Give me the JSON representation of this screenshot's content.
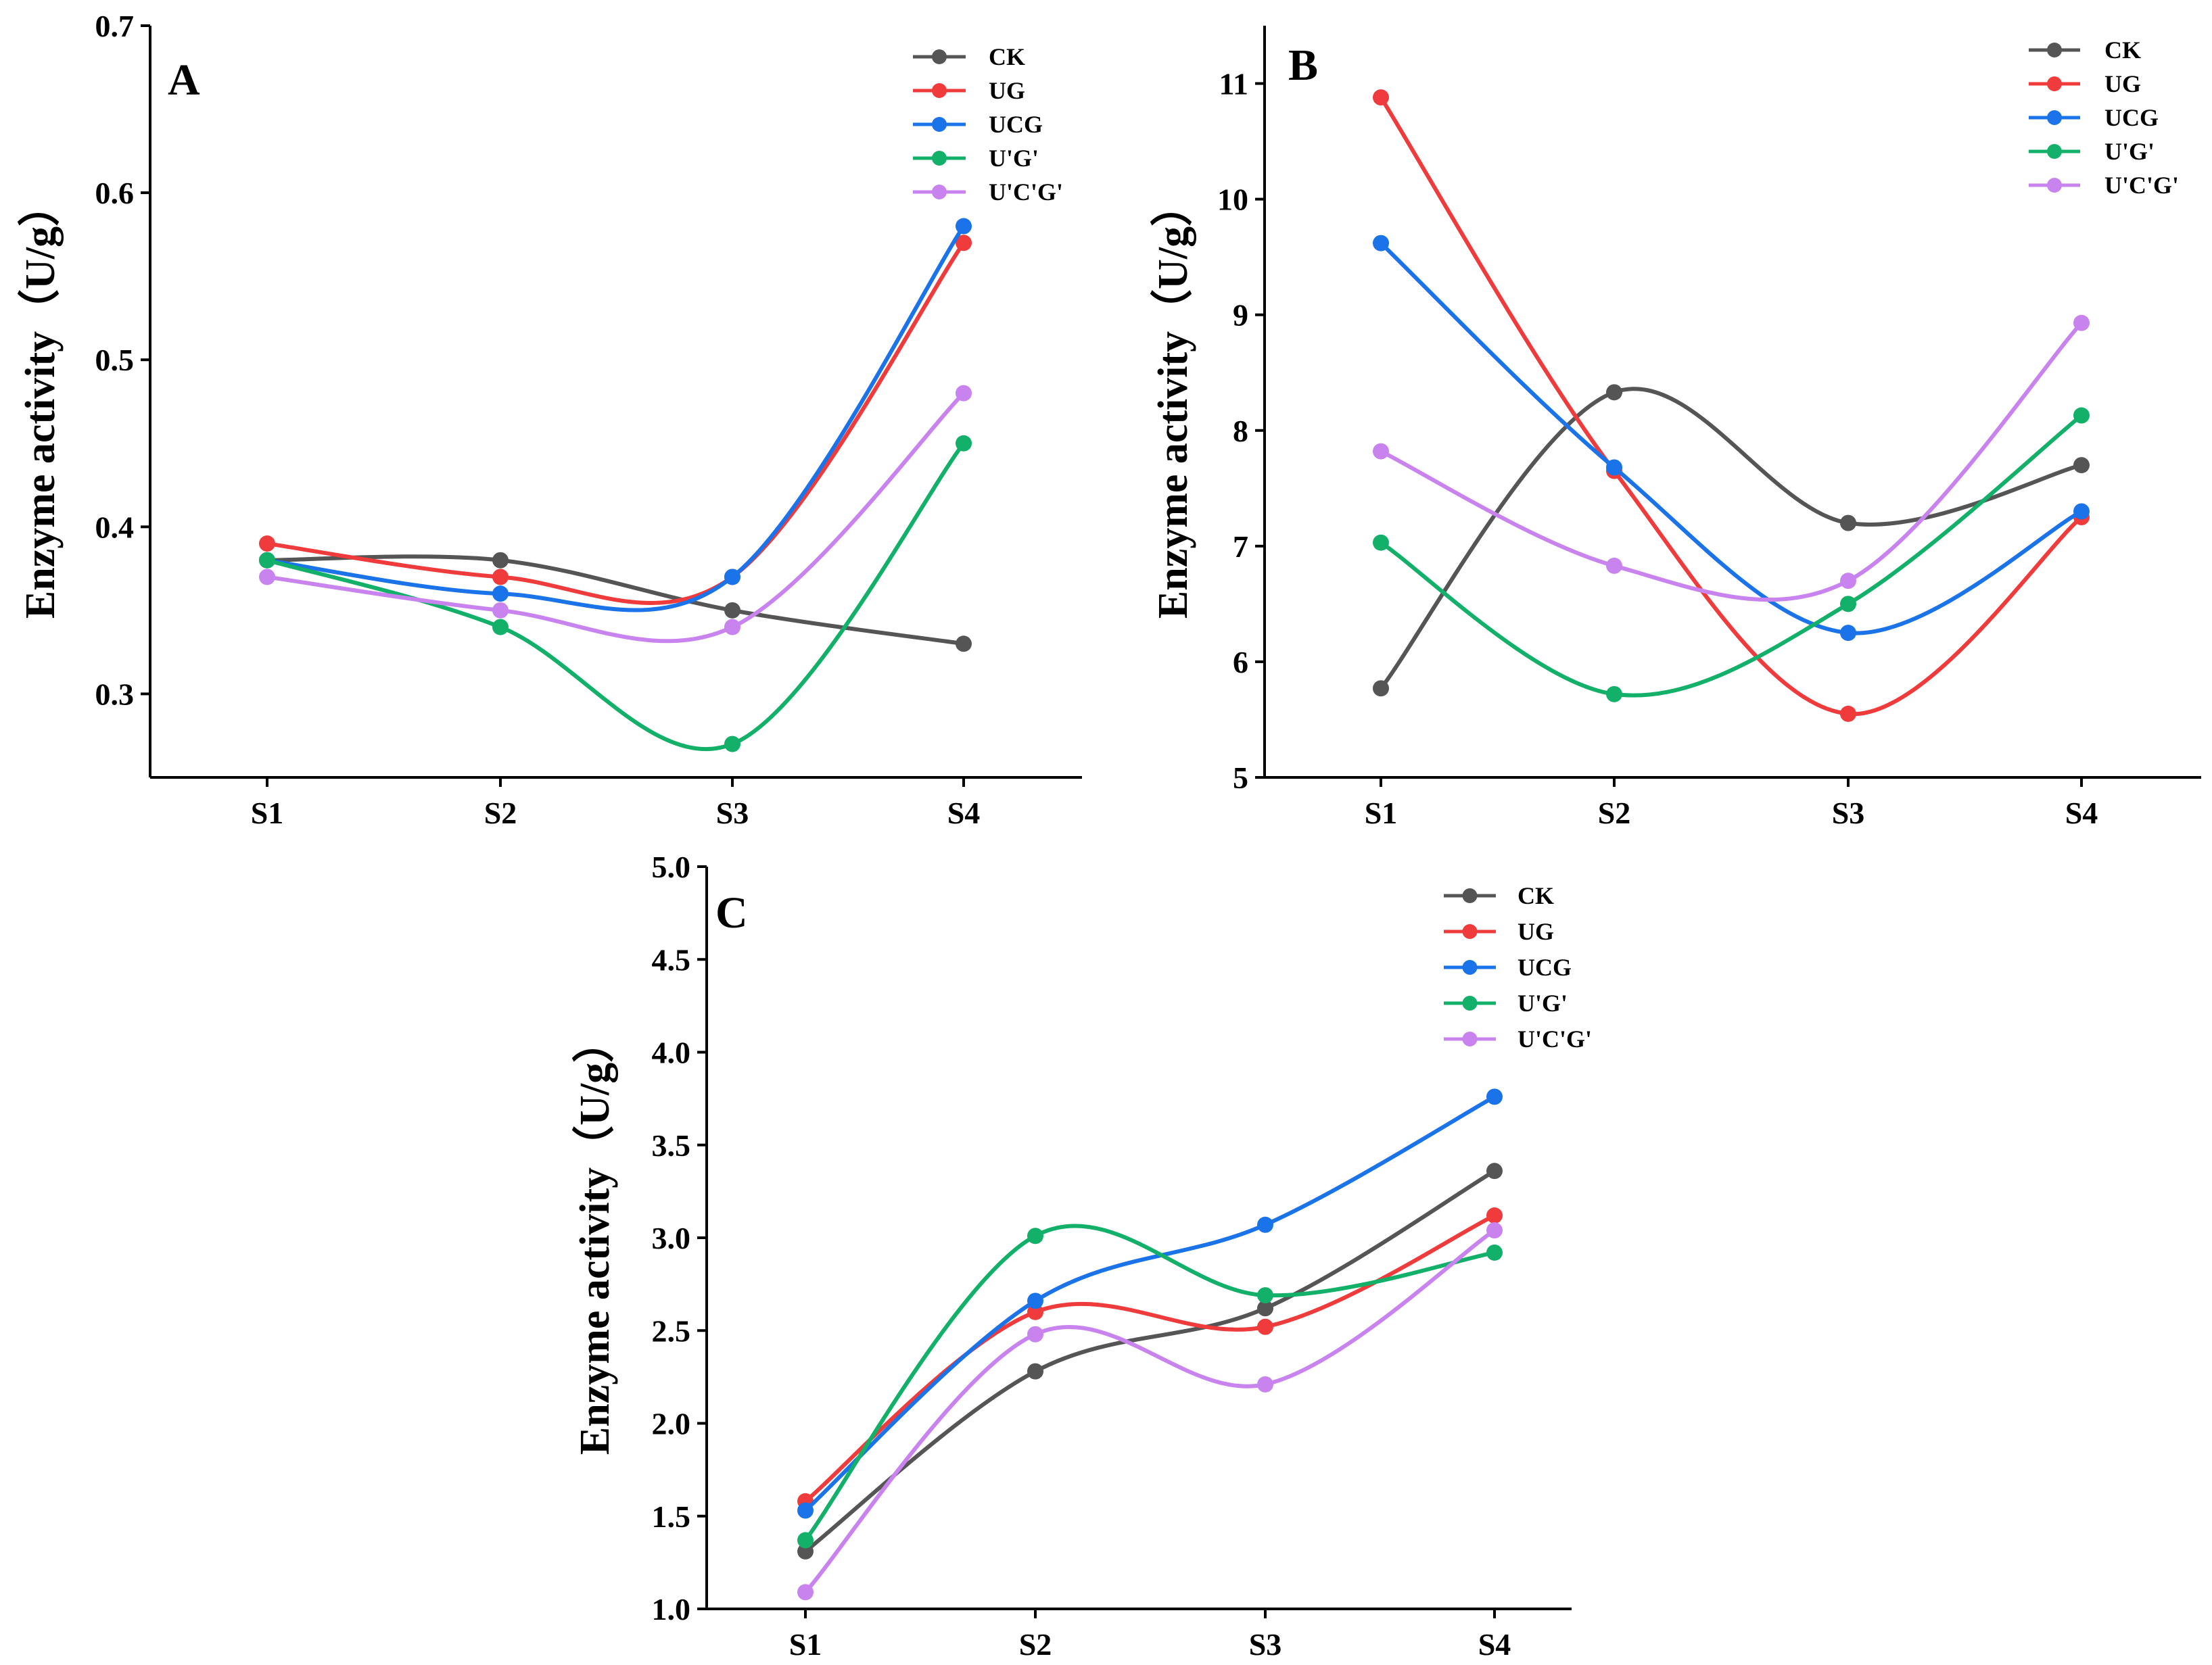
{
  "figure": {
    "series_styles": [
      {
        "name": "CK",
        "color": "#555555"
      },
      {
        "name": "UG",
        "color": "#ef3b3b"
      },
      {
        "name": "UCG",
        "color": "#1a73e8"
      },
      {
        "name": "U'G'",
        "color": "#13b06a"
      },
      {
        "name": "U'C'G'",
        "color": "#c983ef"
      }
    ]
  },
  "chart_data": [
    {
      "panel": "A",
      "type": "line",
      "title": "",
      "xlabel": "",
      "ylabel": "Enzyme activity（U/g）",
      "categories": [
        "S1",
        "S2",
        "S3",
        "S4"
      ],
      "ylim": [
        0.25,
        0.7
      ],
      "yticks": [
        0.3,
        0.4,
        0.5,
        0.6,
        0.7
      ],
      "ytick_labels": [
        "0.3",
        "0.4",
        "0.5",
        "0.6",
        "0.7"
      ],
      "legend_position": "top-right",
      "series": [
        {
          "name": "CK",
          "values": [
            0.38,
            0.38,
            0.35,
            0.33
          ]
        },
        {
          "name": "UG",
          "values": [
            0.39,
            0.37,
            0.37,
            0.57
          ]
        },
        {
          "name": "UCG",
          "values": [
            0.38,
            0.36,
            0.37,
            0.58
          ]
        },
        {
          "name": "U'G'",
          "values": [
            0.38,
            0.34,
            0.27,
            0.45
          ]
        },
        {
          "name": "U'C'G'",
          "values": [
            0.37,
            0.35,
            0.34,
            0.48
          ]
        }
      ]
    },
    {
      "panel": "B",
      "type": "line",
      "title": "",
      "xlabel": "",
      "ylabel": "Enzyme activity（U/g）",
      "categories": [
        "S1",
        "S2",
        "S3",
        "S4"
      ],
      "ylim": [
        5,
        11.5
      ],
      "yticks": [
        5,
        6,
        7,
        8,
        9,
        10,
        11
      ],
      "ytick_labels": [
        "5",
        "6",
        "7",
        "8",
        "9",
        "10",
        "11"
      ],
      "legend_position": "top-right",
      "series": [
        {
          "name": "CK",
          "values": [
            5.77,
            8.33,
            7.2,
            7.7
          ]
        },
        {
          "name": "UG",
          "values": [
            10.88,
            7.65,
            5.55,
            7.25
          ]
        },
        {
          "name": "UCG",
          "values": [
            9.62,
            7.68,
            6.25,
            7.3
          ]
        },
        {
          "name": "U'G'",
          "values": [
            7.03,
            5.72,
            6.5,
            8.13
          ]
        },
        {
          "name": "U'C'G'",
          "values": [
            7.82,
            6.83,
            6.7,
            8.93
          ]
        }
      ]
    },
    {
      "panel": "C",
      "type": "line",
      "title": "",
      "xlabel": "",
      "ylabel": "Enzyme activity（U/g）",
      "categories": [
        "S1",
        "S2",
        "S3",
        "S4"
      ],
      "ylim": [
        1.0,
        5.0
      ],
      "yticks": [
        1.0,
        1.5,
        2.0,
        2.5,
        3.0,
        3.5,
        4.0,
        4.5,
        5.0
      ],
      "ytick_labels": [
        "1.0",
        "1.5",
        "2.0",
        "2.5",
        "3.0",
        "3.5",
        "4.0",
        "4.5",
        "5.0"
      ],
      "legend_position": "top-right",
      "series": [
        {
          "name": "CK",
          "values": [
            1.31,
            2.28,
            2.62,
            3.36
          ]
        },
        {
          "name": "UG",
          "values": [
            1.58,
            2.6,
            2.52,
            3.12
          ]
        },
        {
          "name": "UCG",
          "values": [
            1.53,
            2.66,
            3.07,
            3.76
          ]
        },
        {
          "name": "U'G'",
          "values": [
            1.37,
            3.01,
            2.69,
            2.92
          ]
        },
        {
          "name": "U'C'G'",
          "values": [
            1.09,
            2.48,
            2.21,
            3.04
          ]
        }
      ]
    }
  ]
}
